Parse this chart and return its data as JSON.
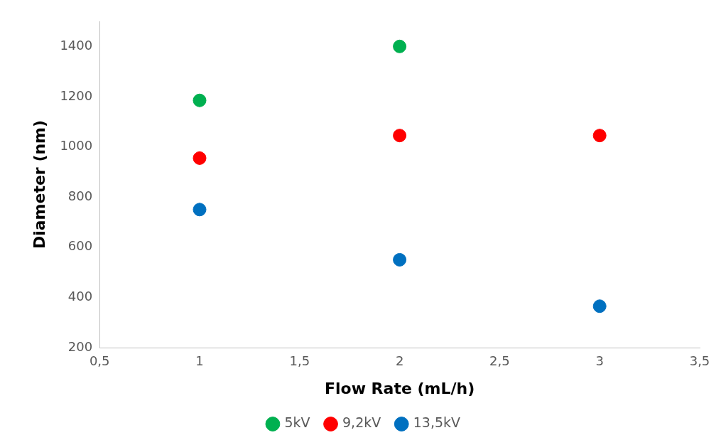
{
  "chart_data": {
    "type": "scatter",
    "xlabel": "Flow Rate (mL/h)",
    "ylabel": "Diameter (nm)",
    "xlim": [
      0.5,
      3.5
    ],
    "xticks": [
      {
        "value": 0.5,
        "label": "0,5"
      },
      1,
      {
        "value": 1.5,
        "label": "1,5"
      },
      2,
      {
        "value": 2.5,
        "label": "2,5"
      },
      3,
      {
        "value": 3.5,
        "label": "3,5"
      }
    ],
    "ylim": [
      200,
      1500
    ],
    "yticks": [
      200,
      400,
      600,
      800,
      1000,
      1200,
      1400
    ],
    "grid": false,
    "legend": "bottom",
    "marker": "circle",
    "series": [
      {
        "name": "5kV",
        "color": "#00b050",
        "x": [
          1,
          2
        ],
        "values": [
          1185,
          1400
        ]
      },
      {
        "name": "9,2kV",
        "color": "#ff0000",
        "x": [
          1,
          2,
          3
        ],
        "values": [
          955,
          1045,
          1045
        ]
      },
      {
        "name": "13,5kV",
        "color": "#0070c0",
        "x": [
          1,
          2,
          3
        ],
        "values": [
          750,
          550,
          365
        ]
      }
    ]
  }
}
